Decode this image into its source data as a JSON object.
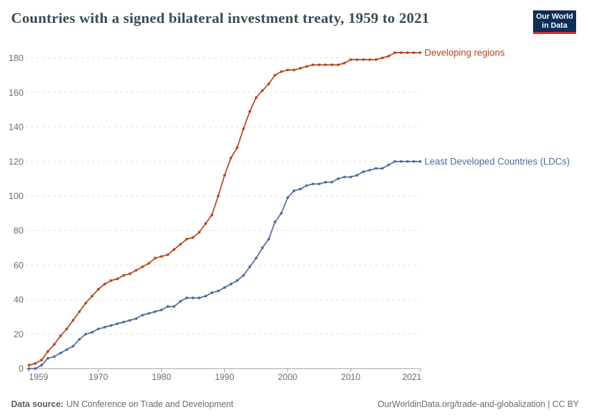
{
  "header": {
    "title": "Countries with a signed bilateral investment treaty, 1959 to 2021",
    "logo": {
      "line1": "Our World",
      "line2": "in Data"
    }
  },
  "footer": {
    "source_label": "Data source:",
    "source_text": "UN Conference on Trade and Development",
    "right_text": "OurWorldinData.org/trade-and-globalization | CC BY"
  },
  "chart_data": {
    "type": "line",
    "title": "Countries with a signed bilateral investment treaty, 1959 to 2021",
    "xlim": [
      1959,
      2021
    ],
    "ylim": [
      0,
      180
    ],
    "x_ticks": [
      1959,
      1970,
      1980,
      1990,
      2000,
      2010,
      2021
    ],
    "y_ticks": [
      0,
      20,
      40,
      60,
      80,
      100,
      120,
      140,
      160,
      180
    ],
    "grid": "dashed-horizontal",
    "legend_position": "line-end-labels",
    "axis_color": "#a1a1a1",
    "grid_color": "#dcdcdc",
    "tick_text_color": "#6e6e6e",
    "x": [
      1959,
      1960,
      1961,
      1962,
      1963,
      1964,
      1965,
      1966,
      1967,
      1968,
      1969,
      1970,
      1971,
      1972,
      1973,
      1974,
      1975,
      1976,
      1977,
      1978,
      1979,
      1980,
      1981,
      1982,
      1983,
      1984,
      1985,
      1986,
      1987,
      1988,
      1989,
      1990,
      1991,
      1992,
      1993,
      1994,
      1995,
      1996,
      1997,
      1998,
      1999,
      2000,
      2001,
      2002,
      2003,
      2004,
      2005,
      2006,
      2007,
      2008,
      2009,
      2010,
      2011,
      2012,
      2013,
      2014,
      2015,
      2016,
      2017,
      2018,
      2019,
      2020,
      2021
    ],
    "series": [
      {
        "name": "Developing regions",
        "color": "#b5421d",
        "values": [
          2,
          3,
          5,
          10,
          14,
          19,
          23,
          28,
          33,
          38,
          42,
          46,
          49,
          51,
          52,
          54,
          55,
          57,
          59,
          61,
          64,
          65,
          66,
          69,
          72,
          75,
          76,
          79,
          84,
          89,
          100,
          112,
          122,
          128,
          139,
          149,
          157,
          161,
          165,
          170,
          172,
          173,
          173,
          174,
          175,
          176,
          176,
          176,
          176,
          176,
          177,
          179,
          179,
          179,
          179,
          179,
          180,
          181,
          183,
          183,
          183,
          183,
          183
        ]
      },
      {
        "name": "Least Developed Countries (LDCs)",
        "color": "#4c6a9c",
        "values": [
          0,
          0,
          2,
          6,
          7,
          9,
          11,
          13,
          17,
          20,
          21,
          23,
          24,
          25,
          26,
          27,
          28,
          29,
          31,
          32,
          33,
          34,
          36,
          36,
          39,
          41,
          41,
          41,
          42,
          44,
          45,
          47,
          49,
          51,
          54,
          59,
          64,
          70,
          75,
          85,
          90,
          99,
          103,
          104,
          106,
          107,
          107,
          108,
          108,
          110,
          111,
          111,
          112,
          114,
          115,
          116,
          116,
          118,
          120,
          120,
          120,
          120,
          120
        ]
      }
    ]
  }
}
